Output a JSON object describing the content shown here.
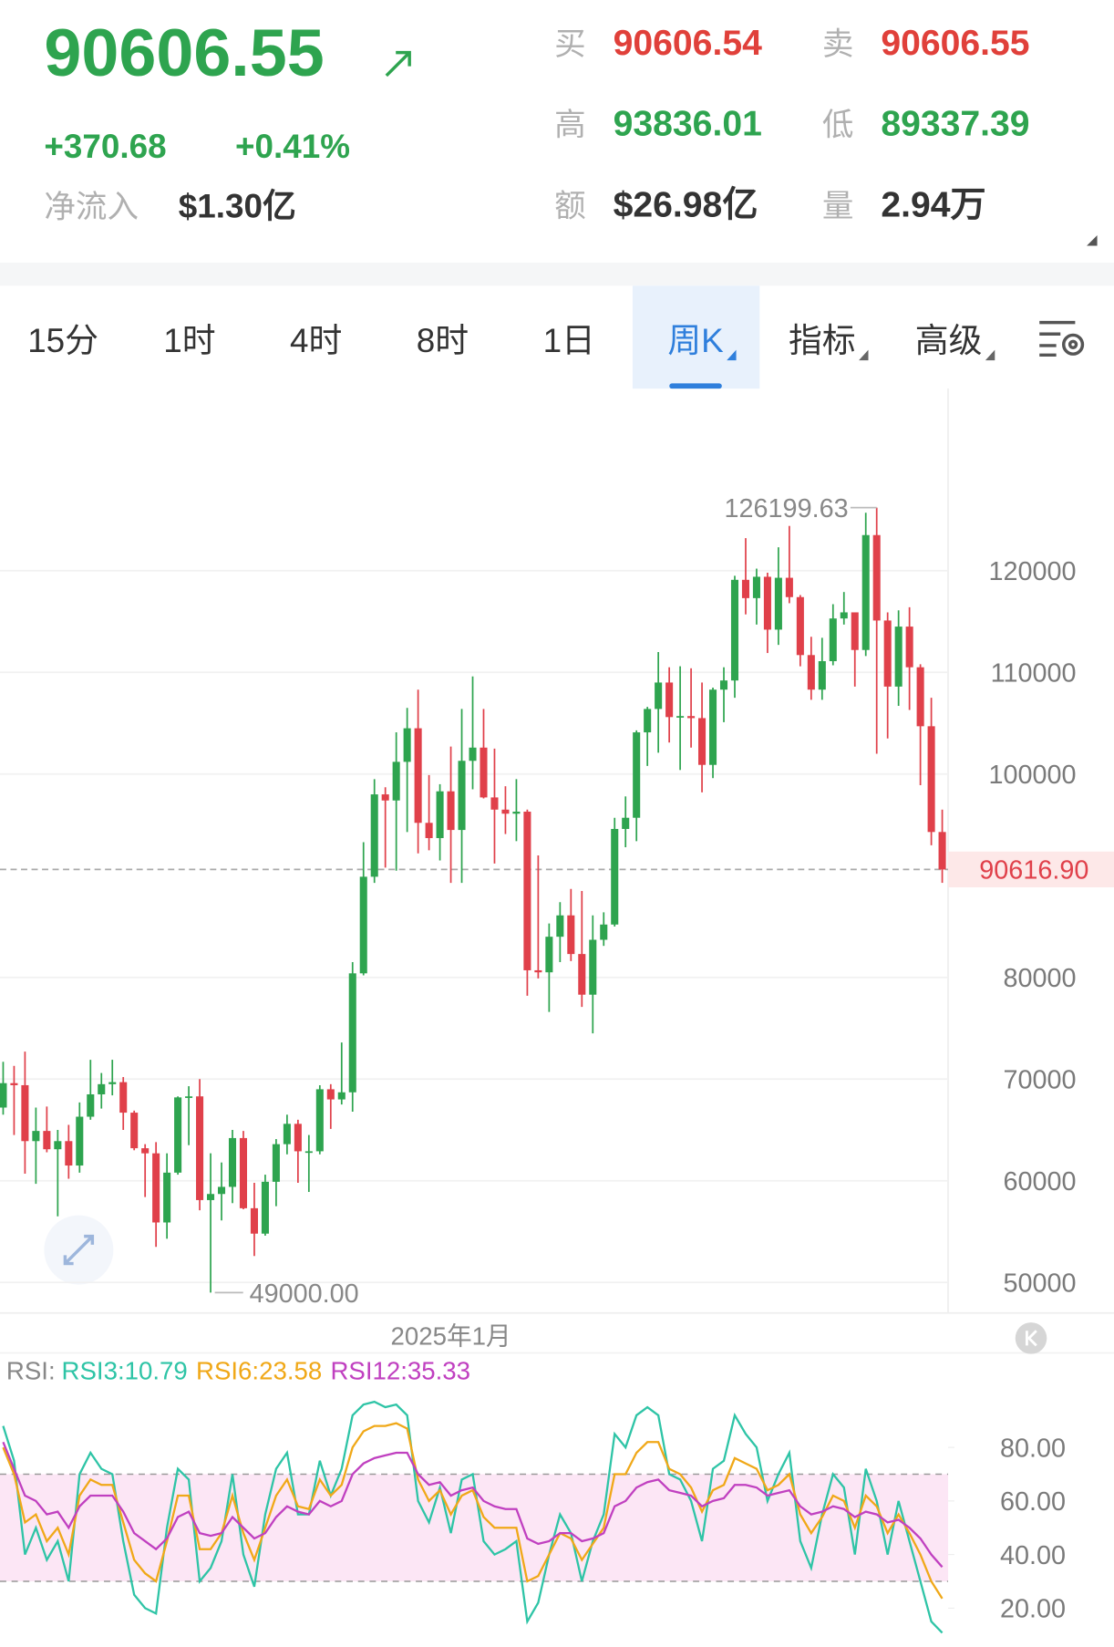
{
  "header": {
    "price": "90606.55",
    "change": "+370.68",
    "change_pct": "+0.41%",
    "net_inflow_label": "净流入",
    "net_inflow": "$1.30亿",
    "stats": [
      {
        "label": "买",
        "value": "90606.54",
        "color": "#e0403a"
      },
      {
        "label": "卖",
        "value": "90606.55",
        "color": "#e0403a"
      },
      {
        "label": "高",
        "value": "93836.01",
        "color": "#2ea44f"
      },
      {
        "label": "低",
        "value": "89337.39",
        "color": "#2ea44f"
      },
      {
        "label": "额",
        "value": "$26.98亿",
        "color": "#333333"
      },
      {
        "label": "量",
        "value": "2.94万",
        "color": "#333333"
      }
    ]
  },
  "tabs": [
    {
      "label": "15分"
    },
    {
      "label": "1时"
    },
    {
      "label": "4时"
    },
    {
      "label": "8时"
    },
    {
      "label": "1日"
    },
    {
      "label": "周K",
      "active": true,
      "dropdown": true
    },
    {
      "label": "指标",
      "dropdown": true
    },
    {
      "label": "高级",
      "dropdown": true
    }
  ],
  "chart_data": [
    {
      "type": "candlestick",
      "categories": [
        null,
        null,
        null,
        null,
        null,
        null,
        null,
        null,
        null,
        null,
        null,
        null,
        null,
        null,
        null,
        null,
        null,
        null,
        null,
        null,
        null,
        null,
        null,
        null,
        null,
        null,
        null,
        null,
        null,
        null,
        null,
        null,
        null,
        null,
        null,
        null,
        null,
        null,
        null,
        null,
        null,
        "2025年1月",
        null,
        null,
        null,
        null,
        null,
        null,
        null,
        null,
        null,
        null,
        null,
        null,
        null,
        null,
        null,
        null,
        null,
        null,
        null,
        null,
        null,
        null,
        null,
        null,
        null,
        null,
        null,
        null,
        null,
        null,
        null,
        null,
        null,
        null,
        null,
        null,
        null,
        null,
        null,
        null,
        null,
        null,
        null,
        null,
        null
      ],
      "open": [
        67200,
        69600,
        69400,
        63900,
        64900,
        63100,
        63900,
        61500,
        66300,
        68500,
        69500,
        69700,
        66700,
        63200,
        62700,
        55900,
        60800,
        68200,
        68300,
        58100,
        58700,
        59400,
        64200,
        57300,
        54800,
        59900,
        63600,
        65600,
        62900,
        62900,
        69000,
        68000,
        68700,
        80400,
        89900,
        98000,
        97400,
        101200,
        104500,
        95200,
        93700,
        98300,
        94500,
        101300,
        102600,
        97700,
        96500,
        96100,
        96300,
        80700,
        80500,
        84000,
        86100,
        82300,
        78300,
        83700,
        85200,
        94600,
        95700,
        104100,
        106400,
        109000,
        105600,
        105700,
        105500,
        100900,
        108300,
        109200,
        119100,
        117300,
        119400,
        114200,
        119300,
        117400,
        111700,
        108300,
        111100,
        115300,
        115900,
        112200,
        123500,
        115100,
        108600,
        114500,
        110500,
        104700,
        94300
      ],
      "high": [
        71700,
        71300,
        72700,
        67200,
        67300,
        65000,
        65500,
        67700,
        71900,
        70600,
        71900,
        70200,
        66900,
        63600,
        63800,
        62700,
        68300,
        69300,
        70000,
        62700,
        61800,
        65000,
        64900,
        59800,
        60600,
        64100,
        66500,
        66000,
        64500,
        69400,
        69500,
        73600,
        81500,
        93300,
        99500,
        98700,
        104100,
        106500,
        108300,
        99900,
        99000,
        102700,
        106400,
        109600,
        106400,
        102500,
        98800,
        99500,
        96500,
        92000,
        85300,
        87400,
        88700,
        88500,
        86100,
        86400,
        95700,
        97800,
        104300,
        106600,
        112000,
        110500,
        110600,
        110400,
        109000,
        108500,
        110500,
        119500,
        123200,
        120200,
        119800,
        122300,
        124400,
        117600,
        113500,
        113400,
        116700,
        117900,
        115900,
        125700,
        126199.63,
        115900,
        116100,
        116400,
        110800,
        107500,
        96500
      ],
      "low": [
        66500,
        64500,
        60700,
        59700,
        62800,
        56500,
        60200,
        60800,
        66000,
        67100,
        68400,
        65000,
        63000,
        58400,
        53500,
        54300,
        60600,
        63500,
        57100,
        49000,
        56100,
        57800,
        57200,
        52600,
        54600,
        57500,
        62600,
        59800,
        58900,
        62600,
        65100,
        67500,
        66800,
        80200,
        89300,
        90800,
        90500,
        94300,
        92200,
        92500,
        91500,
        89300,
        89300,
        98500,
        97600,
        91200,
        94100,
        93400,
        78200,
        79900,
        76600,
        81500,
        81600,
        77100,
        74500,
        83100,
        85000,
        92800,
        93400,
        100800,
        102100,
        103100,
        100400,
        102600,
        98200,
        99600,
        105100,
        107500,
        115700,
        114700,
        111900,
        112700,
        116800,
        110600,
        107300,
        107300,
        110700,
        114700,
        108600,
        111600,
        102000,
        103500,
        106700,
        106300,
        98900,
        93000,
        89300
      ],
      "close": [
        69600,
        69400,
        63900,
        64900,
        63100,
        63900,
        61500,
        66300,
        68500,
        69500,
        69700,
        66700,
        63200,
        62700,
        55900,
        60800,
        68200,
        68300,
        58100,
        58700,
        59400,
        64200,
        57300,
        54800,
        59900,
        63600,
        65600,
        62900,
        62900,
        69000,
        68000,
        68700,
        80400,
        89900,
        98000,
        97400,
        101200,
        104500,
        95200,
        93700,
        98300,
        94500,
        101300,
        102600,
        97700,
        96500,
        96100,
        96300,
        80700,
        80500,
        84000,
        86100,
        82300,
        78300,
        83700,
        85200,
        94600,
        95700,
        104100,
        106400,
        109000,
        105600,
        105700,
        105500,
        100900,
        108300,
        109200,
        119100,
        117300,
        119400,
        114200,
        119300,
        117400,
        111700,
        108300,
        111100,
        115300,
        115900,
        112200,
        123500,
        115100,
        108600,
        114500,
        110500,
        104700,
        94300,
        90616.9
      ],
      "up_color": "#2ea44f",
      "down_color": "#e0404a",
      "ylim": [
        47000,
        137900
      ],
      "yticks": [
        50000,
        60000,
        70000,
        80000,
        100000,
        110000,
        120000
      ],
      "grid": true,
      "annotations": [
        {
          "value": 126199.63,
          "label": "126199.63"
        },
        {
          "value": 49000,
          "label": "49000.00"
        }
      ],
      "current_price": {
        "value": 90616.9,
        "label": "90616.90"
      }
    },
    {
      "type": "line",
      "title": "RSI:",
      "series": [
        {
          "name": "RSI3:10.79",
          "color": "#2ec4a6",
          "values": [
            88,
            75,
            40,
            50,
            38,
            45,
            30,
            70,
            78,
            72,
            70,
            45,
            25,
            20,
            18,
            50,
            72,
            68,
            30,
            35,
            45,
            70,
            40,
            28,
            55,
            72,
            78,
            55,
            55,
            75,
            62,
            72,
            92,
            96,
            97,
            95,
            96,
            92,
            60,
            52,
            65,
            48,
            68,
            70,
            45,
            40,
            42,
            45,
            15,
            22,
            40,
            55,
            48,
            30,
            45,
            55,
            85,
            80,
            92,
            95,
            92,
            70,
            68,
            60,
            45,
            72,
            75,
            92,
            85,
            80,
            60,
            70,
            78,
            45,
            35,
            55,
            70,
            65,
            40,
            72,
            60,
            40,
            60,
            45,
            30,
            15,
            10.79
          ]
        },
        {
          "name": "RSI6:23.58",
          "color": "#f0a818",
          "values": [
            80,
            70,
            52,
            55,
            45,
            50,
            40,
            62,
            68,
            66,
            66,
            52,
            38,
            33,
            30,
            45,
            62,
            62,
            42,
            42,
            48,
            62,
            48,
            38,
            50,
            62,
            68,
            58,
            57,
            68,
            62,
            66,
            80,
            86,
            88,
            88,
            89,
            87,
            68,
            60,
            64,
            55,
            62,
            64,
            54,
            50,
            50,
            50,
            30,
            32,
            40,
            48,
            46,
            38,
            44,
            50,
            70,
            70,
            78,
            82,
            82,
            72,
            70,
            65,
            56,
            64,
            66,
            76,
            74,
            72,
            64,
            66,
            70,
            55,
            48,
            54,
            62,
            60,
            50,
            62,
            58,
            48,
            55,
            48,
            40,
            30,
            23.58
          ]
        },
        {
          "name": "RSI12:35.33",
          "color": "#c040c0",
          "values": [
            82,
            72,
            62,
            60,
            55,
            56,
            50,
            58,
            62,
            62,
            62,
            56,
            48,
            45,
            42,
            46,
            54,
            56,
            48,
            47,
            48,
            54,
            50,
            46,
            48,
            54,
            58,
            56,
            55,
            60,
            58,
            60,
            70,
            74,
            76,
            77,
            78,
            78,
            70,
            66,
            67,
            62,
            64,
            65,
            60,
            58,
            57,
            57,
            46,
            44,
            45,
            48,
            48,
            45,
            46,
            48,
            58,
            60,
            65,
            67,
            68,
            64,
            63,
            62,
            58,
            60,
            61,
            66,
            66,
            65,
            62,
            63,
            64,
            58,
            55,
            56,
            58,
            57,
            54,
            56,
            55,
            52,
            53,
            50,
            46,
            40,
            35.33
          ]
        }
      ],
      "ylim": [
        5.5,
        114.5
      ],
      "yticks": [
        {
          "value": 20,
          "label": "20.00"
        },
        {
          "value": 40,
          "label": "40.00"
        },
        {
          "value": 60,
          "label": "60.00"
        },
        {
          "value": 80,
          "label": "80.00"
        }
      ],
      "band": [
        30,
        70
      ]
    }
  ]
}
